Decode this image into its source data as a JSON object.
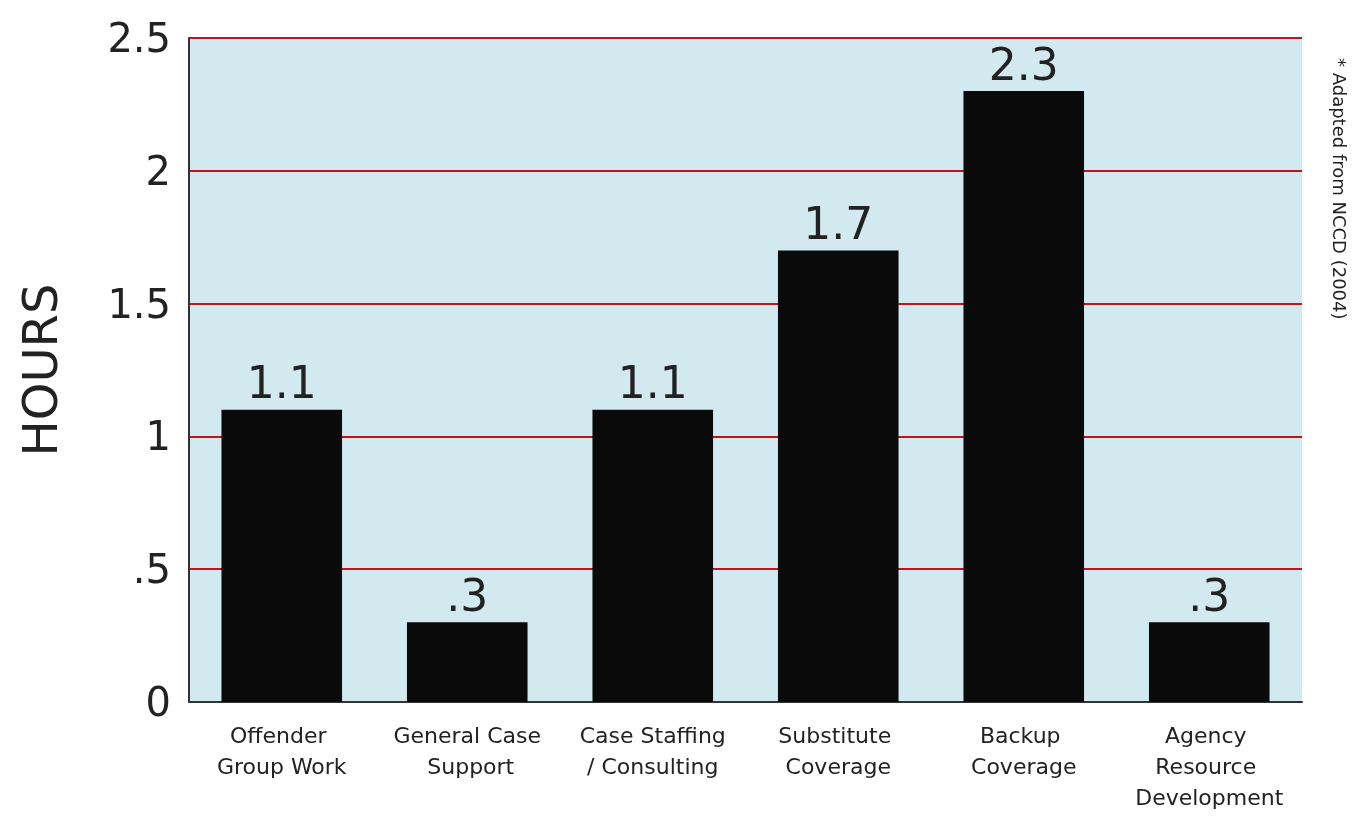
{
  "chart_data": {
    "type": "bar",
    "categories": [
      "Offender Group Work",
      "General Case Support",
      "Case Staffing/ Consulting",
      "Substitute Coverage",
      "Backup Coverage",
      "Agency Resource Development"
    ],
    "values": [
      1.1,
      0.3,
      1.1,
      1.7,
      2.3,
      0.3
    ],
    "value_labels": [
      "1.1",
      ".3",
      "1.1",
      "1.7",
      "2.3",
      ".3"
    ],
    "color": "#0a0a0a",
    "ylabel": "HOURS",
    "ylim": [
      0,
      2.5
    ],
    "yticks": [
      0,
      {
        "value": 0.5,
        "label": ".5"
      },
      1,
      1.5,
      2,
      2.5
    ],
    "grid": "y",
    "annotations": [
      "* Adapted from NCCD (2004)"
    ]
  }
}
